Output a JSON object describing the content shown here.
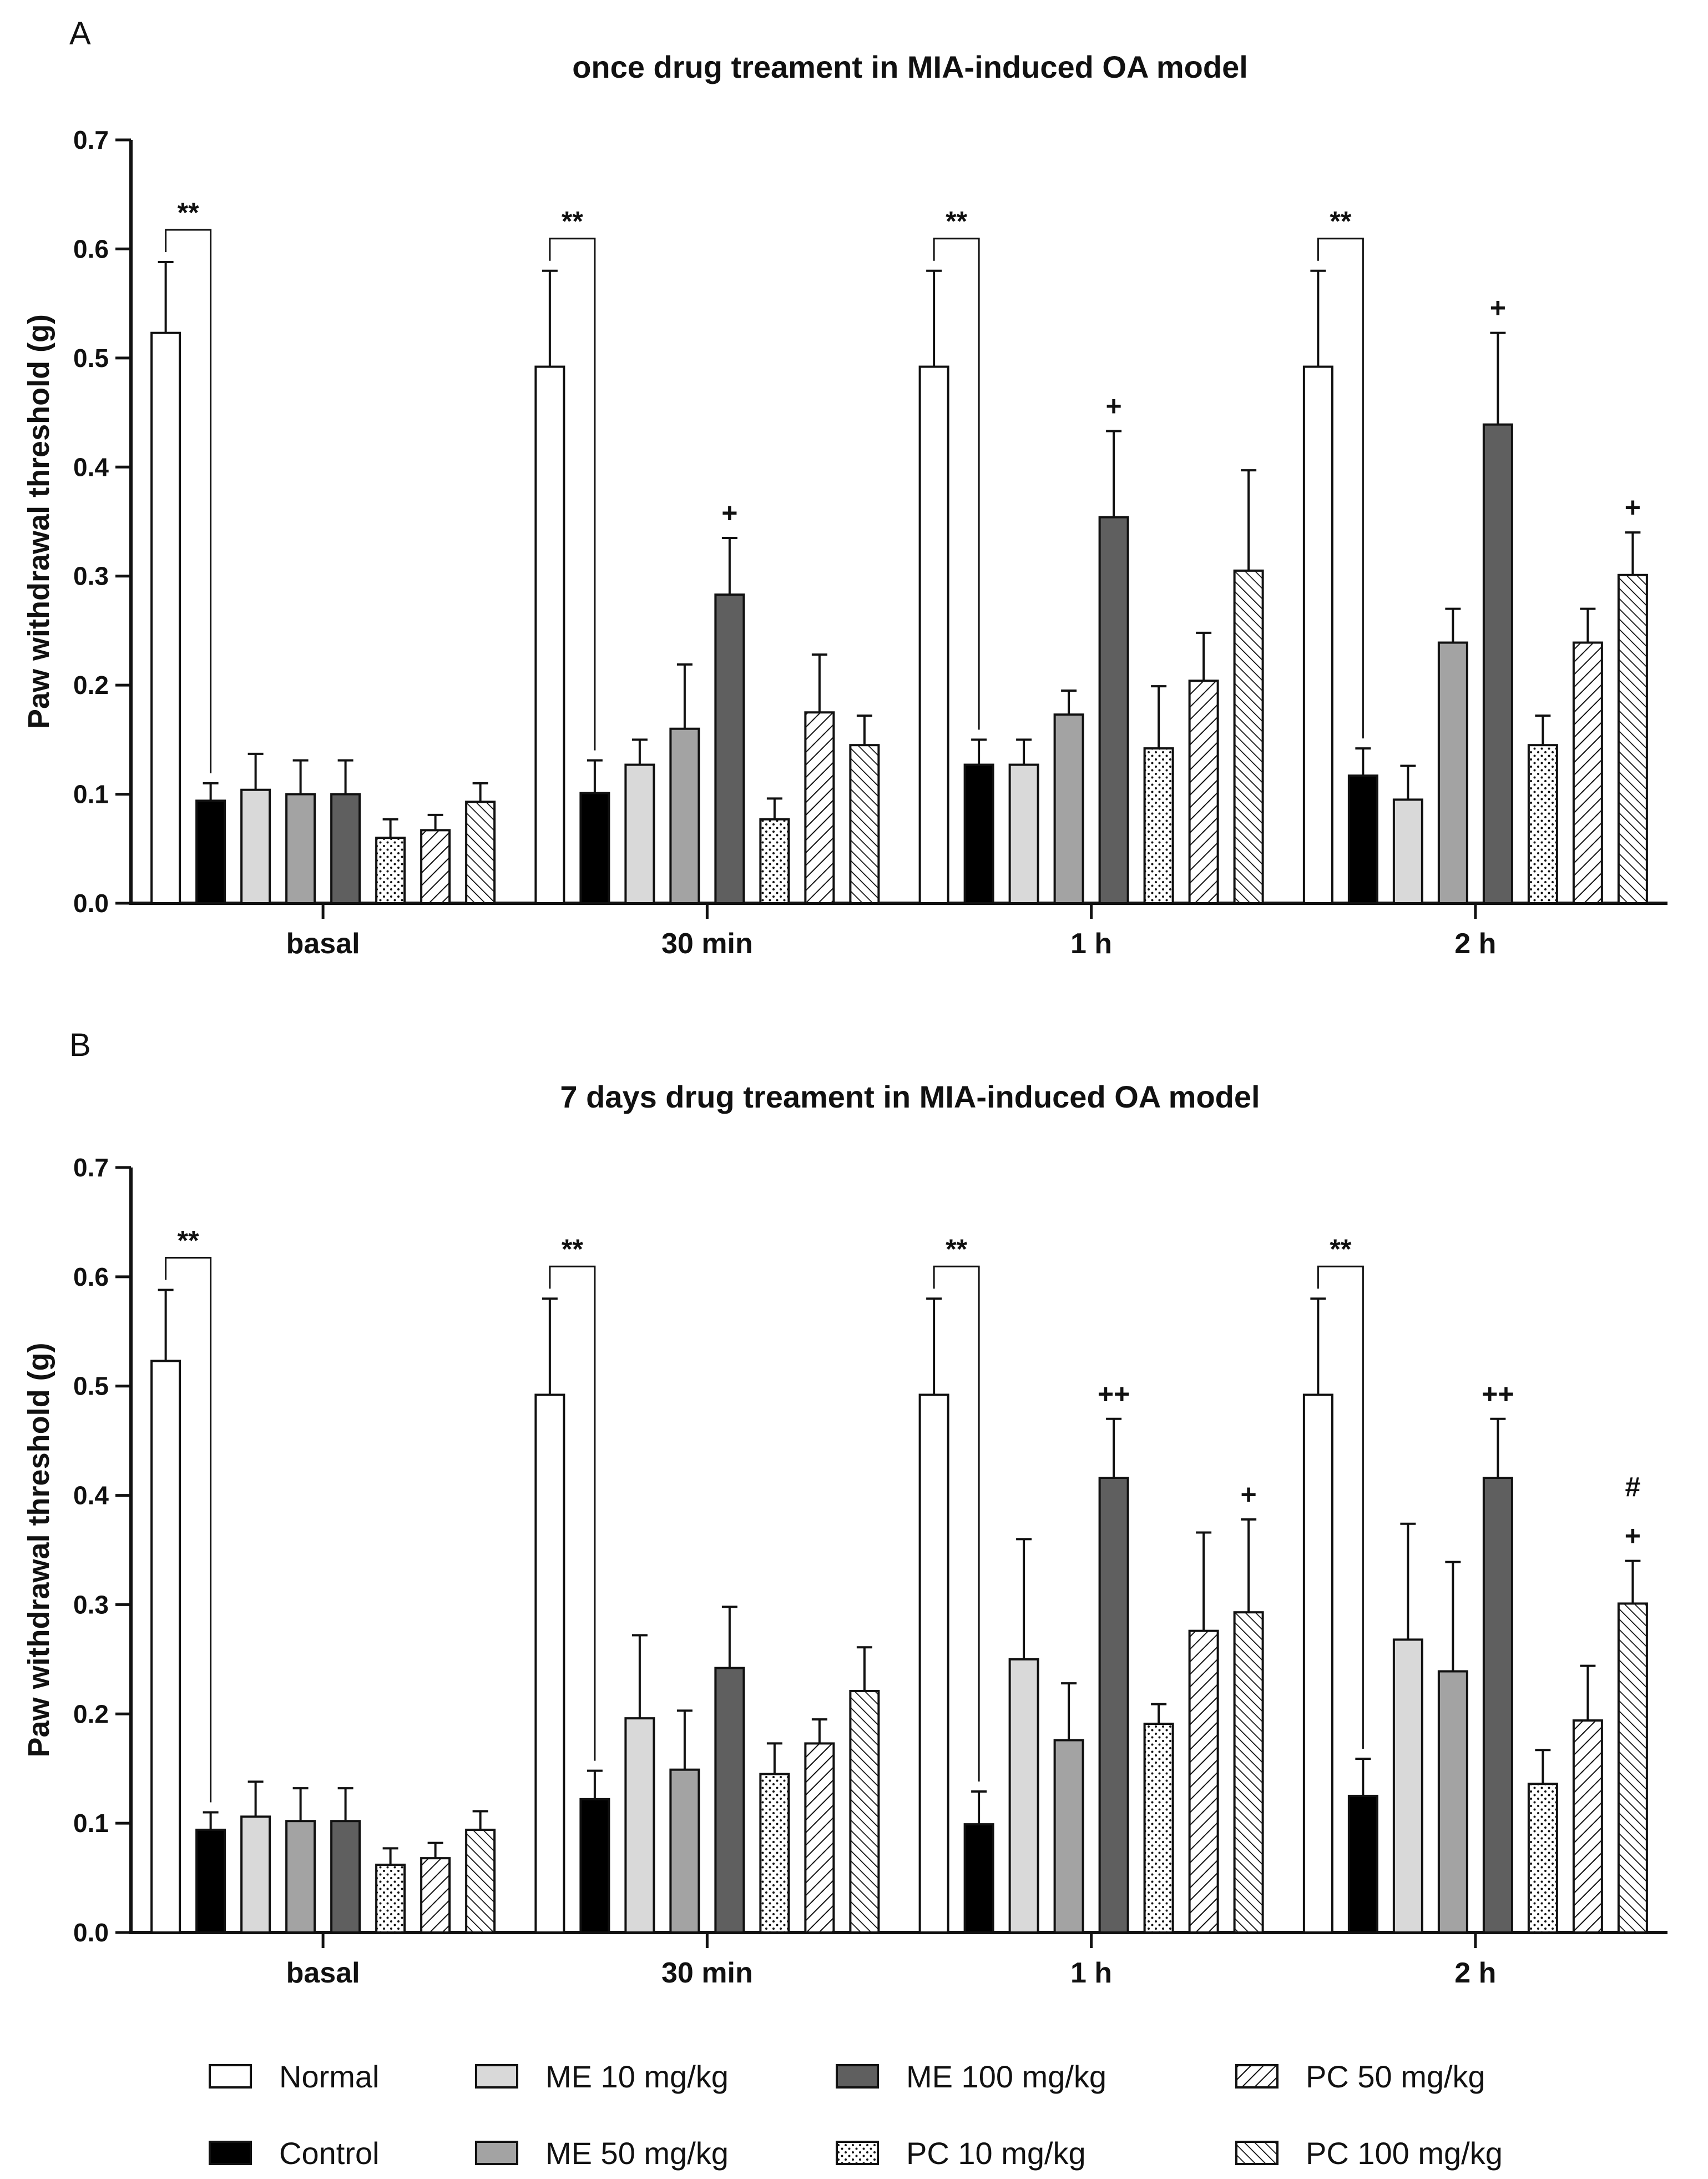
{
  "panels": [
    {
      "letter": "A"
    },
    {
      "letter": "B"
    }
  ],
  "legend": [
    {
      "name": "Normal",
      "style": "empty"
    },
    {
      "name": "Control",
      "style": "black"
    },
    {
      "name": "ME 10 mg/kg",
      "style": "light"
    },
    {
      "name": "ME 50 mg/kg",
      "style": "mid"
    },
    {
      "name": "ME 100 mg/kg",
      "style": "dark"
    },
    {
      "name": "PC 10 mg/kg",
      "style": "dots"
    },
    {
      "name": "PC 50 mg/kg",
      "style": "hatch-right"
    },
    {
      "name": "PC 100 mg/kg",
      "style": "hatch-left"
    }
  ],
  "colors": {
    "axis": "#111111",
    "light": "#d9d9d9",
    "mid": "#a3a3a3",
    "dark": "#5f5f5f",
    "black": "#000000"
  },
  "chart_data": [
    {
      "type": "bar",
      "title": "once drug treament in MIA-induced OA model",
      "xlabel": "",
      "ylabel": "Paw withdrawal threshold (g)",
      "ylim": [
        0,
        0.7
      ],
      "yticks": [
        "0.0",
        "0.1",
        "0.2",
        "0.3",
        "0.4",
        "0.5",
        "0.6",
        "0.7"
      ],
      "categories": [
        "basal",
        "30 min",
        "1 h",
        "2 h"
      ],
      "series": [
        {
          "name": "Normal",
          "values": [
            0.523,
            0.492,
            0.492,
            0.492
          ],
          "errors": [
            0.065,
            0.088,
            0.088,
            0.088
          ]
        },
        {
          "name": "Control",
          "values": [
            0.094,
            0.101,
            0.127,
            0.117
          ],
          "errors": [
            0.016,
            0.03,
            0.023,
            0.025
          ]
        },
        {
          "name": "ME 10 mg/kg",
          "values": [
            0.104,
            0.127,
            0.127,
            0.095
          ],
          "errors": [
            0.033,
            0.023,
            0.023,
            0.031
          ]
        },
        {
          "name": "ME 50 mg/kg",
          "values": [
            0.1,
            0.16,
            0.173,
            0.239
          ],
          "errors": [
            0.031,
            0.059,
            0.022,
            0.031
          ]
        },
        {
          "name": "ME 100 mg/kg",
          "values": [
            0.1,
            0.283,
            0.354,
            0.439
          ],
          "errors": [
            0.031,
            0.052,
            0.079,
            0.084
          ]
        },
        {
          "name": "PC 10 mg/kg",
          "values": [
            0.06,
            0.077,
            0.142,
            0.145
          ],
          "errors": [
            0.017,
            0.019,
            0.057,
            0.027
          ]
        },
        {
          "name": "PC 50 mg/kg",
          "values": [
            0.067,
            0.175,
            0.204,
            0.239
          ],
          "errors": [
            0.014,
            0.053,
            0.044,
            0.031
          ]
        },
        {
          "name": "PC 100 mg/kg",
          "values": [
            0.093,
            0.145,
            0.305,
            0.301
          ],
          "errors": [
            0.017,
            0.027,
            0.092,
            0.039
          ]
        }
      ],
      "significance": [
        {
          "category": 0,
          "label": "**",
          "bracket": true
        },
        {
          "category": 1,
          "label": "**",
          "bracket": true
        },
        {
          "category": 2,
          "label": "**",
          "bracket": true
        },
        {
          "category": 3,
          "label": "**",
          "bracket": true
        },
        {
          "category": 1,
          "series": 4,
          "lines": [
            "+"
          ]
        },
        {
          "category": 2,
          "series": 4,
          "lines": [
            "+"
          ]
        },
        {
          "category": 3,
          "series": 4,
          "lines": [
            "+"
          ]
        },
        {
          "category": 3,
          "series": 7,
          "lines": [
            "+"
          ]
        }
      ]
    },
    {
      "type": "bar",
      "title": "7 days drug treament in MIA-induced OA model",
      "xlabel": "",
      "ylabel": "Paw withdrawal threshold (g)",
      "ylim": [
        0,
        0.7
      ],
      "yticks": [
        "0.0",
        "0.1",
        "0.2",
        "0.3",
        "0.4",
        "0.5",
        "0.6",
        "0.7"
      ],
      "categories": [
        "basal",
        "30 min",
        "1 h",
        "2 h"
      ],
      "series": [
        {
          "name": "Normal",
          "values": [
            0.523,
            0.492,
            0.492,
            0.492
          ],
          "errors": [
            0.065,
            0.088,
            0.088,
            0.088
          ]
        },
        {
          "name": "Control",
          "values": [
            0.094,
            0.122,
            0.099,
            0.125
          ],
          "errors": [
            0.016,
            0.026,
            0.03,
            0.034
          ]
        },
        {
          "name": "ME 10 mg/kg",
          "values": [
            0.106,
            0.196,
            0.25,
            0.268
          ],
          "errors": [
            0.032,
            0.076,
            0.11,
            0.106
          ]
        },
        {
          "name": "ME 50 mg/kg",
          "values": [
            0.102,
            0.149,
            0.176,
            0.239
          ],
          "errors": [
            0.03,
            0.054,
            0.052,
            0.1
          ]
        },
        {
          "name": "ME 100 mg/kg",
          "values": [
            0.102,
            0.242,
            0.416,
            0.416
          ],
          "errors": [
            0.03,
            0.056,
            0.054,
            0.054
          ]
        },
        {
          "name": "PC 10 mg/kg",
          "values": [
            0.062,
            0.145,
            0.191,
            0.136
          ],
          "errors": [
            0.015,
            0.028,
            0.018,
            0.031
          ]
        },
        {
          "name": "PC 50 mg/kg",
          "values": [
            0.068,
            0.173,
            0.276,
            0.194
          ],
          "errors": [
            0.014,
            0.022,
            0.09,
            0.05
          ]
        },
        {
          "name": "PC 100 mg/kg",
          "values": [
            0.094,
            0.221,
            0.293,
            0.301
          ],
          "errors": [
            0.017,
            0.04,
            0.085,
            0.039
          ]
        }
      ],
      "significance": [
        {
          "category": 0,
          "label": "**",
          "bracket": true
        },
        {
          "category": 1,
          "label": "**",
          "bracket": true
        },
        {
          "category": 2,
          "label": "**",
          "bracket": true
        },
        {
          "category": 3,
          "label": "**",
          "bracket": true
        },
        {
          "category": 2,
          "series": 4,
          "lines": [
            "++"
          ]
        },
        {
          "category": 2,
          "series": 7,
          "lines": [
            "+"
          ]
        },
        {
          "category": 3,
          "series": 4,
          "lines": [
            "++"
          ]
        },
        {
          "category": 3,
          "series": 7,
          "lines": [
            "#",
            "+"
          ]
        }
      ]
    }
  ]
}
